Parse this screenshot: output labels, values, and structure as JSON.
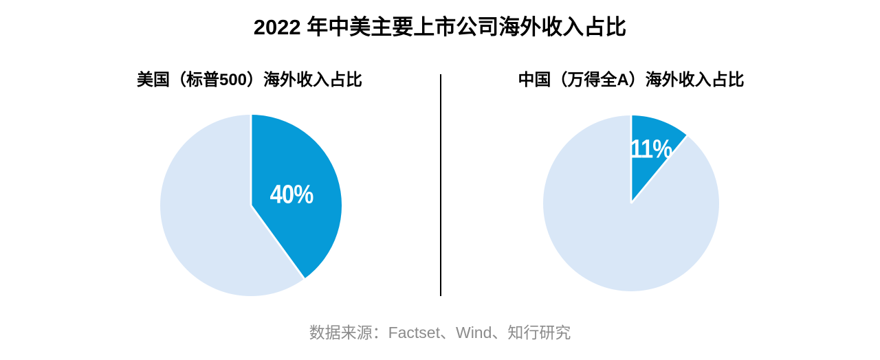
{
  "title": "2022 年中美主要上市公司海外收入占比",
  "panels": [
    {
      "subtitle": "美国（标普500）海外收入占比",
      "value_label": "40%"
    },
    {
      "subtitle": "中国（万得全A）海外收入占比",
      "value_label": "11%"
    }
  ],
  "source": "数据来源：Factset、Wind、知行研究",
  "colors": {
    "highlight": "#069bd8",
    "remainder": "#d9e7f7",
    "slice_border": "#ffffff",
    "divider": "#000000",
    "title_text": "#000000",
    "source_text": "#8b8b8b",
    "value_label_text": "#ffffff"
  },
  "chart_data": [
    {
      "type": "pie",
      "title": "美国（标普500）海外收入占比",
      "slices": [
        {
          "label": "40%",
          "value": 40,
          "color": "#069bd8"
        },
        {
          "label": "",
          "value": 60,
          "color": "#d9e7f7"
        }
      ],
      "start_angle_deg": 0,
      "clockwise": true,
      "legend": "none"
    },
    {
      "type": "pie",
      "title": "中国（万得全A）海外收入占比",
      "slices": [
        {
          "label": "11%",
          "value": 11,
          "color": "#069bd8"
        },
        {
          "label": "",
          "value": 89,
          "color": "#d9e7f7"
        }
      ],
      "start_angle_deg": 0,
      "clockwise": true,
      "legend": "none"
    }
  ]
}
